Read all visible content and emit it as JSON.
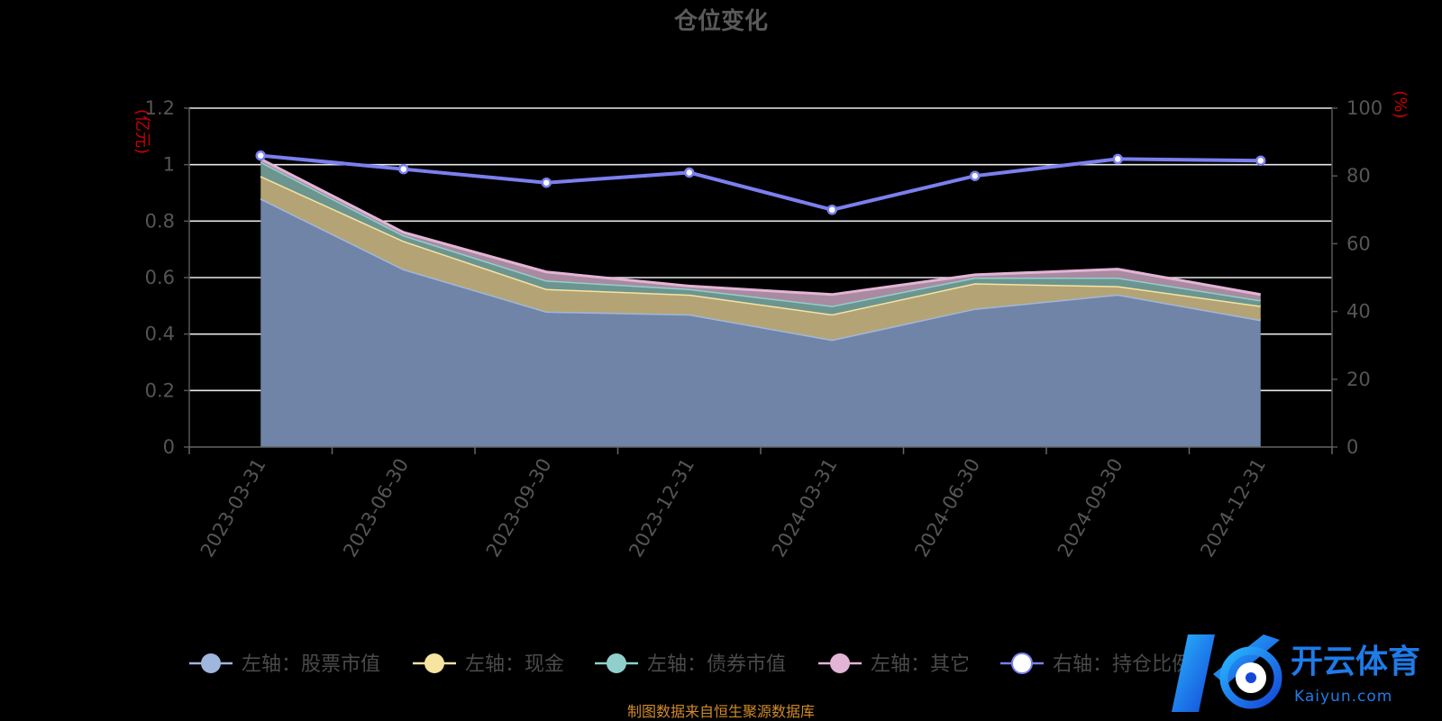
{
  "title": "仓位变化",
  "source_note": "制图数据来自恒生聚源数据库",
  "left_axis_unit": "(亿元)",
  "right_axis_unit": "(%)",
  "watermark": {
    "name": "开云体育",
    "sub": "Kaiyun.com"
  },
  "legend": [
    {
      "label": "左轴：股票市值",
      "color": "#9fb6dd"
    },
    {
      "label": "左轴：现金",
      "color": "#f6e4a0"
    },
    {
      "label": "左轴：债券市值",
      "color": "#8fd0cc"
    },
    {
      "label": "左轴：其它",
      "color": "#e2b4d6"
    },
    {
      "label": "右轴：持仓比例",
      "color": "#7b7fef"
    }
  ],
  "chart_data": {
    "type": "area",
    "categories": [
      "2023-03-31",
      "2023-06-30",
      "2023-09-30",
      "2023-12-31",
      "2024-03-31",
      "2024-06-30",
      "2024-09-30",
      "2024-12-31"
    ],
    "stacked": true,
    "series": [
      {
        "name": "左轴：股票市值",
        "axis": "left",
        "type": "area",
        "color": "#8faad8",
        "values": [
          0.88,
          0.63,
          0.48,
          0.47,
          0.38,
          0.49,
          0.54,
          0.45
        ]
      },
      {
        "name": "左轴：现金",
        "axis": "left",
        "type": "area",
        "color": "#f6e4a0",
        "values": [
          0.08,
          0.1,
          0.08,
          0.07,
          0.09,
          0.09,
          0.03,
          0.05
        ]
      },
      {
        "name": "左轴：债券市值",
        "axis": "left",
        "type": "area",
        "color": "#8fd0cc",
        "values": [
          0.05,
          0.02,
          0.03,
          0.02,
          0.03,
          0.02,
          0.03,
          0.02
        ]
      },
      {
        "name": "左轴：其它",
        "axis": "left",
        "type": "area",
        "color": "#e2b4d6",
        "values": [
          0.01,
          0.01,
          0.03,
          0.01,
          0.04,
          0.01,
          0.03,
          0.02
        ]
      },
      {
        "name": "右轴：持仓比例",
        "axis": "right",
        "type": "line",
        "color": "#7b7fef",
        "values": [
          86,
          82,
          78,
          81,
          70,
          80,
          85,
          84.5
        ]
      }
    ],
    "left_axis": {
      "min": 0,
      "max": 1.2,
      "ticks": [
        "0",
        "0.2",
        "0.4",
        "0.6",
        "0.8",
        "1",
        "1.2"
      ]
    },
    "right_axis": {
      "min": 0,
      "max": 100,
      "ticks": [
        "0",
        "20",
        "40",
        "60",
        "80",
        "100"
      ]
    },
    "grid": true,
    "legend_position": "bottom"
  }
}
